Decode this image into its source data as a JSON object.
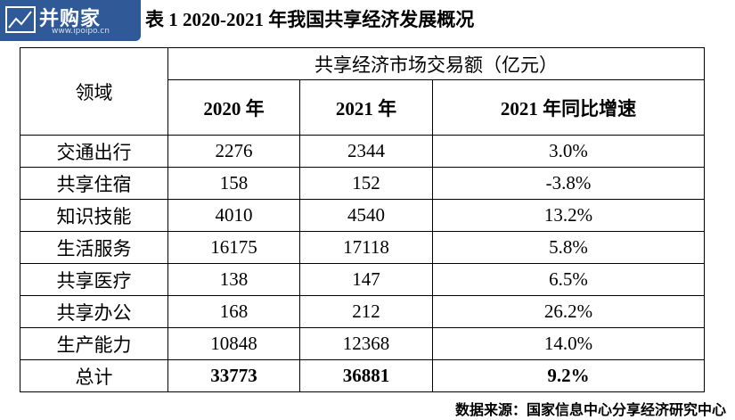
{
  "header": {
    "logo_text": "并购家",
    "logo_url": "www.ipoipo.cn",
    "title": "表 1 2020-2021 年我国共享经济发展概况"
  },
  "table": {
    "corner": "领域",
    "group_header": "共享经济市场交易额（亿元）",
    "columns": [
      "2020 年",
      "2021 年",
      "2021 年同比增速"
    ],
    "rows": [
      [
        "交通出行",
        "2276",
        "2344",
        "3.0%"
      ],
      [
        "共享住宿",
        "158",
        "152",
        "-3.8%"
      ],
      [
        "知识技能",
        "4010",
        "4540",
        "13.2%"
      ],
      [
        "生活服务",
        "16175",
        "17118",
        "5.8%"
      ],
      [
        "共享医疗",
        "138",
        "147",
        "6.5%"
      ],
      [
        "共享办公",
        "168",
        "212",
        "26.2%"
      ],
      [
        "生产能力",
        "10848",
        "12368",
        "14.0%"
      ],
      [
        "总计",
        "33773",
        "36881",
        "9.2%"
      ]
    ]
  },
  "source": "数据来源：国家信息中心分享经济研究中心"
}
